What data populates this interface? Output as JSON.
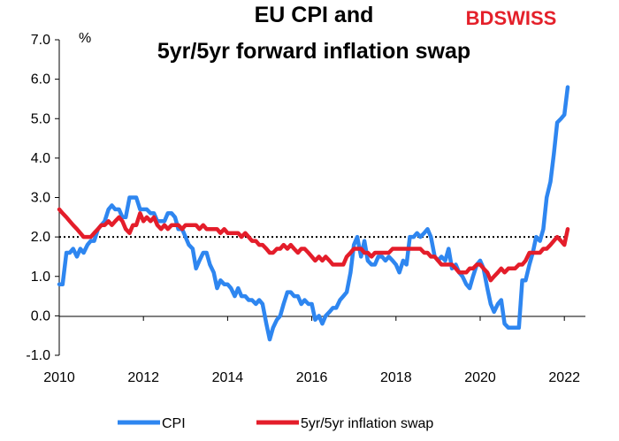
{
  "brand": {
    "logo_text_a": "BD",
    "logo_text_b": "SWISS",
    "color": "#e4202a"
  },
  "chart_data": {
    "type": "line",
    "title_lines": [
      "EU CPI and",
      "5yr/5yr forward inflation swap"
    ],
    "ylabel": "%",
    "xlim": [
      2010,
      2022.5
    ],
    "ylim": [
      -1.0,
      7.0
    ],
    "x_ticks": [
      "2010",
      "2012",
      "2014",
      "2016",
      "2018",
      "2020",
      "2022"
    ],
    "y_ticks": [
      "-1.0",
      "0.0",
      "1.0",
      "2.0",
      "3.0",
      "4.0",
      "5.0",
      "6.0",
      "7.0"
    ],
    "reference_line": {
      "y": 2.0,
      "style": "dotted"
    },
    "legend_position": "bottom",
    "series": [
      {
        "name": "CPI",
        "color": "#2e86f0",
        "points": [
          [
            2010.0,
            0.8
          ],
          [
            2010.08,
            0.8
          ],
          [
            2010.17,
            1.6
          ],
          [
            2010.25,
            1.6
          ],
          [
            2010.33,
            1.7
          ],
          [
            2010.42,
            1.5
          ],
          [
            2010.5,
            1.7
          ],
          [
            2010.58,
            1.6
          ],
          [
            2010.67,
            1.8
          ],
          [
            2010.75,
            1.9
          ],
          [
            2010.83,
            1.9
          ],
          [
            2010.92,
            2.2
          ],
          [
            2011.0,
            2.3
          ],
          [
            2011.08,
            2.4
          ],
          [
            2011.17,
            2.7
          ],
          [
            2011.25,
            2.8
          ],
          [
            2011.33,
            2.7
          ],
          [
            2011.42,
            2.7
          ],
          [
            2011.5,
            2.5
          ],
          [
            2011.58,
            2.5
          ],
          [
            2011.67,
            3.0
          ],
          [
            2011.75,
            3.0
          ],
          [
            2011.83,
            3.0
          ],
          [
            2011.92,
            2.7
          ],
          [
            2012.0,
            2.7
          ],
          [
            2012.08,
            2.7
          ],
          [
            2012.17,
            2.6
          ],
          [
            2012.25,
            2.6
          ],
          [
            2012.33,
            2.4
          ],
          [
            2012.42,
            2.4
          ],
          [
            2012.5,
            2.4
          ],
          [
            2012.58,
            2.6
          ],
          [
            2012.67,
            2.6
          ],
          [
            2012.75,
            2.5
          ],
          [
            2012.83,
            2.2
          ],
          [
            2012.92,
            2.2
          ],
          [
            2013.0,
            2.0
          ],
          [
            2013.08,
            1.8
          ],
          [
            2013.17,
            1.7
          ],
          [
            2013.25,
            1.2
          ],
          [
            2013.33,
            1.4
          ],
          [
            2013.42,
            1.6
          ],
          [
            2013.5,
            1.6
          ],
          [
            2013.58,
            1.3
          ],
          [
            2013.67,
            1.1
          ],
          [
            2013.75,
            0.7
          ],
          [
            2013.83,
            0.9
          ],
          [
            2013.92,
            0.8
          ],
          [
            2014.0,
            0.8
          ],
          [
            2014.08,
            0.7
          ],
          [
            2014.17,
            0.5
          ],
          [
            2014.25,
            0.7
          ],
          [
            2014.33,
            0.5
          ],
          [
            2014.42,
            0.5
          ],
          [
            2014.5,
            0.4
          ],
          [
            2014.58,
            0.4
          ],
          [
            2014.67,
            0.3
          ],
          [
            2014.75,
            0.4
          ],
          [
            2014.83,
            0.3
          ],
          [
            2014.92,
            -0.2
          ],
          [
            2015.0,
            -0.6
          ],
          [
            2015.08,
            -0.3
          ],
          [
            2015.17,
            -0.1
          ],
          [
            2015.25,
            0.0
          ],
          [
            2015.33,
            0.3
          ],
          [
            2015.42,
            0.6
          ],
          [
            2015.5,
            0.6
          ],
          [
            2015.58,
            0.5
          ],
          [
            2015.67,
            0.5
          ],
          [
            2015.75,
            0.3
          ],
          [
            2015.83,
            0.4
          ],
          [
            2015.92,
            0.3
          ],
          [
            2016.0,
            0.3
          ],
          [
            2016.08,
            -0.1
          ],
          [
            2016.17,
            0.0
          ],
          [
            2016.25,
            -0.2
          ],
          [
            2016.33,
            0.0
          ],
          [
            2016.42,
            0.1
          ],
          [
            2016.5,
            0.2
          ],
          [
            2016.58,
            0.2
          ],
          [
            2016.67,
            0.4
          ],
          [
            2016.75,
            0.5
          ],
          [
            2016.83,
            0.6
          ],
          [
            2016.92,
            1.1
          ],
          [
            2017.0,
            1.8
          ],
          [
            2017.08,
            2.0
          ],
          [
            2017.17,
            1.5
          ],
          [
            2017.25,
            1.9
          ],
          [
            2017.33,
            1.4
          ],
          [
            2017.42,
            1.3
          ],
          [
            2017.5,
            1.3
          ],
          [
            2017.58,
            1.5
          ],
          [
            2017.67,
            1.5
          ],
          [
            2017.75,
            1.4
          ],
          [
            2017.83,
            1.5
          ],
          [
            2017.92,
            1.4
          ],
          [
            2018.0,
            1.3
          ],
          [
            2018.08,
            1.1
          ],
          [
            2018.17,
            1.4
          ],
          [
            2018.25,
            1.3
          ],
          [
            2018.33,
            2.0
          ],
          [
            2018.42,
            2.0
          ],
          [
            2018.5,
            2.1
          ],
          [
            2018.58,
            2.0
          ],
          [
            2018.67,
            2.1
          ],
          [
            2018.75,
            2.2
          ],
          [
            2018.83,
            2.0
          ],
          [
            2018.92,
            1.5
          ],
          [
            2019.0,
            1.4
          ],
          [
            2019.08,
            1.5
          ],
          [
            2019.17,
            1.4
          ],
          [
            2019.25,
            1.7
          ],
          [
            2019.33,
            1.2
          ],
          [
            2019.42,
            1.3
          ],
          [
            2019.5,
            1.1
          ],
          [
            2019.58,
            1.0
          ],
          [
            2019.67,
            0.8
          ],
          [
            2019.75,
            0.7
          ],
          [
            2019.83,
            1.0
          ],
          [
            2019.92,
            1.3
          ],
          [
            2020.0,
            1.4
          ],
          [
            2020.08,
            1.2
          ],
          [
            2020.17,
            0.7
          ],
          [
            2020.25,
            0.3
          ],
          [
            2020.33,
            0.1
          ],
          [
            2020.42,
            0.3
          ],
          [
            2020.5,
            0.4
          ],
          [
            2020.58,
            -0.2
          ],
          [
            2020.67,
            -0.3
          ],
          [
            2020.75,
            -0.3
          ],
          [
            2020.83,
            -0.3
          ],
          [
            2020.92,
            -0.3
          ],
          [
            2021.0,
            0.9
          ],
          [
            2021.08,
            0.9
          ],
          [
            2021.17,
            1.3
          ],
          [
            2021.25,
            1.6
          ],
          [
            2021.33,
            2.0
          ],
          [
            2021.42,
            1.9
          ],
          [
            2021.5,
            2.2
          ],
          [
            2021.58,
            3.0
          ],
          [
            2021.67,
            3.4
          ],
          [
            2021.75,
            4.1
          ],
          [
            2021.83,
            4.9
          ],
          [
            2021.92,
            5.0
          ],
          [
            2022.0,
            5.1
          ],
          [
            2022.08,
            5.8
          ]
        ]
      },
      {
        "name": "5yr/5yr inflation swap",
        "color": "#e41d2a",
        "points": [
          [
            2010.0,
            2.7
          ],
          [
            2010.08,
            2.6
          ],
          [
            2010.17,
            2.5
          ],
          [
            2010.25,
            2.4
          ],
          [
            2010.33,
            2.3
          ],
          [
            2010.42,
            2.2
          ],
          [
            2010.5,
            2.1
          ],
          [
            2010.58,
            2.0
          ],
          [
            2010.67,
            2.0
          ],
          [
            2010.75,
            2.0
          ],
          [
            2010.83,
            2.1
          ],
          [
            2010.92,
            2.2
          ],
          [
            2011.0,
            2.3
          ],
          [
            2011.08,
            2.3
          ],
          [
            2011.17,
            2.4
          ],
          [
            2011.25,
            2.3
          ],
          [
            2011.33,
            2.4
          ],
          [
            2011.42,
            2.5
          ],
          [
            2011.5,
            2.4
          ],
          [
            2011.58,
            2.2
          ],
          [
            2011.67,
            2.1
          ],
          [
            2011.75,
            2.3
          ],
          [
            2011.83,
            2.3
          ],
          [
            2011.92,
            2.6
          ],
          [
            2012.0,
            2.4
          ],
          [
            2012.08,
            2.5
          ],
          [
            2012.17,
            2.4
          ],
          [
            2012.25,
            2.5
          ],
          [
            2012.33,
            2.3
          ],
          [
            2012.42,
            2.2
          ],
          [
            2012.5,
            2.3
          ],
          [
            2012.58,
            2.2
          ],
          [
            2012.67,
            2.3
          ],
          [
            2012.75,
            2.3
          ],
          [
            2012.83,
            2.3
          ],
          [
            2012.92,
            2.2
          ],
          [
            2013.0,
            2.3
          ],
          [
            2013.08,
            2.3
          ],
          [
            2013.17,
            2.3
          ],
          [
            2013.25,
            2.3
          ],
          [
            2013.33,
            2.2
          ],
          [
            2013.42,
            2.3
          ],
          [
            2013.5,
            2.2
          ],
          [
            2013.58,
            2.2
          ],
          [
            2013.67,
            2.2
          ],
          [
            2013.75,
            2.2
          ],
          [
            2013.83,
            2.1
          ],
          [
            2013.92,
            2.2
          ],
          [
            2014.0,
            2.1
          ],
          [
            2014.08,
            2.1
          ],
          [
            2014.17,
            2.1
          ],
          [
            2014.25,
            2.1
          ],
          [
            2014.33,
            2.0
          ],
          [
            2014.42,
            2.1
          ],
          [
            2014.5,
            2.0
          ],
          [
            2014.58,
            1.9
          ],
          [
            2014.67,
            1.9
          ],
          [
            2014.75,
            1.8
          ],
          [
            2014.83,
            1.8
          ],
          [
            2014.92,
            1.7
          ],
          [
            2015.0,
            1.6
          ],
          [
            2015.08,
            1.6
          ],
          [
            2015.17,
            1.7
          ],
          [
            2015.25,
            1.7
          ],
          [
            2015.33,
            1.8
          ],
          [
            2015.42,
            1.7
          ],
          [
            2015.5,
            1.8
          ],
          [
            2015.58,
            1.7
          ],
          [
            2015.67,
            1.6
          ],
          [
            2015.75,
            1.7
          ],
          [
            2015.83,
            1.7
          ],
          [
            2015.92,
            1.6
          ],
          [
            2016.0,
            1.5
          ],
          [
            2016.08,
            1.4
          ],
          [
            2016.17,
            1.5
          ],
          [
            2016.25,
            1.4
          ],
          [
            2016.33,
            1.5
          ],
          [
            2016.42,
            1.4
          ],
          [
            2016.5,
            1.3
          ],
          [
            2016.58,
            1.3
          ],
          [
            2016.67,
            1.3
          ],
          [
            2016.75,
            1.3
          ],
          [
            2016.83,
            1.5
          ],
          [
            2016.92,
            1.6
          ],
          [
            2017.0,
            1.7
          ],
          [
            2017.08,
            1.7
          ],
          [
            2017.17,
            1.7
          ],
          [
            2017.25,
            1.6
          ],
          [
            2017.33,
            1.6
          ],
          [
            2017.42,
            1.5
          ],
          [
            2017.5,
            1.6
          ],
          [
            2017.58,
            1.6
          ],
          [
            2017.67,
            1.6
          ],
          [
            2017.75,
            1.6
          ],
          [
            2017.83,
            1.6
          ],
          [
            2017.92,
            1.7
          ],
          [
            2018.0,
            1.7
          ],
          [
            2018.08,
            1.7
          ],
          [
            2018.17,
            1.7
          ],
          [
            2018.25,
            1.7
          ],
          [
            2018.33,
            1.7
          ],
          [
            2018.42,
            1.7
          ],
          [
            2018.5,
            1.7
          ],
          [
            2018.58,
            1.7
          ],
          [
            2018.67,
            1.6
          ],
          [
            2018.75,
            1.6
          ],
          [
            2018.83,
            1.5
          ],
          [
            2018.92,
            1.5
          ],
          [
            2019.0,
            1.4
          ],
          [
            2019.08,
            1.3
          ],
          [
            2019.17,
            1.3
          ],
          [
            2019.25,
            1.3
          ],
          [
            2019.33,
            1.3
          ],
          [
            2019.42,
            1.2
          ],
          [
            2019.5,
            1.1
          ],
          [
            2019.58,
            1.1
          ],
          [
            2019.67,
            1.1
          ],
          [
            2019.75,
            1.2
          ],
          [
            2019.83,
            1.2
          ],
          [
            2019.92,
            1.3
          ],
          [
            2020.0,
            1.3
          ],
          [
            2020.08,
            1.2
          ],
          [
            2020.17,
            1.1
          ],
          [
            2020.25,
            0.9
          ],
          [
            2020.33,
            1.0
          ],
          [
            2020.42,
            1.1
          ],
          [
            2020.5,
            1.2
          ],
          [
            2020.58,
            1.1
          ],
          [
            2020.67,
            1.2
          ],
          [
            2020.75,
            1.2
          ],
          [
            2020.83,
            1.2
          ],
          [
            2020.92,
            1.3
          ],
          [
            2021.0,
            1.3
          ],
          [
            2021.08,
            1.4
          ],
          [
            2021.17,
            1.6
          ],
          [
            2021.25,
            1.6
          ],
          [
            2021.33,
            1.6
          ],
          [
            2021.42,
            1.6
          ],
          [
            2021.5,
            1.7
          ],
          [
            2021.58,
            1.7
          ],
          [
            2021.67,
            1.8
          ],
          [
            2021.75,
            1.9
          ],
          [
            2021.83,
            2.0
          ],
          [
            2021.92,
            1.9
          ],
          [
            2022.0,
            1.8
          ],
          [
            2022.08,
            2.2
          ]
        ]
      }
    ]
  }
}
